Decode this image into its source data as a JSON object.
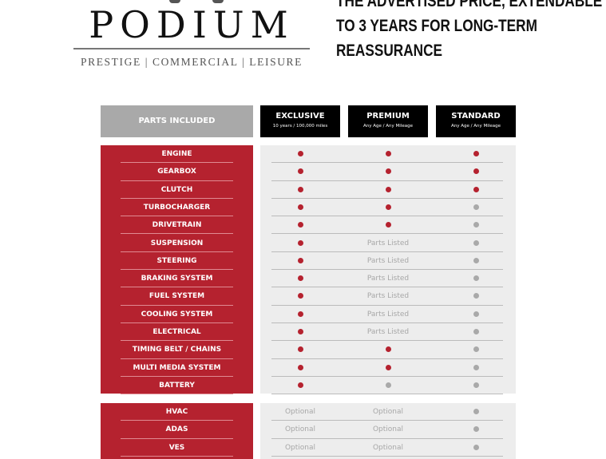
{
  "brand": {
    "name": "PODIUM",
    "tagline": "PRESTIGE | COMMERCIAL | LEISURE"
  },
  "headline": {
    "lines": [
      "THE ADVERTISED PRICE, EXTENDABLE UP",
      "TO 3 YEARS FOR LONG-TERM",
      "REASSURANCE"
    ]
  },
  "table": {
    "parts_header": "PARTS INCLUDED",
    "plans": [
      {
        "title": "EXCLUSIVE",
        "subtitle": "10 years / 100,000 miles"
      },
      {
        "title": "PREMIUM",
        "subtitle": "Any Age / Any Mileage"
      },
      {
        "title": "STANDARD",
        "subtitle": "Any Age / Any Mileage"
      }
    ],
    "colors": {
      "included": "#b5222f",
      "not_included": "#a9a9a9"
    },
    "rows": [
      {
        "part": "ENGINE",
        "cells": [
          "red",
          "red",
          "red"
        ]
      },
      {
        "part": "GEARBOX",
        "cells": [
          "red",
          "red",
          "red"
        ]
      },
      {
        "part": "CLUTCH",
        "cells": [
          "red",
          "red",
          "red"
        ]
      },
      {
        "part": "TURBOCHARGER",
        "cells": [
          "red",
          "red",
          "grey"
        ]
      },
      {
        "part": "DRIVETRAIN",
        "cells": [
          "red",
          "red",
          "grey"
        ]
      },
      {
        "part": "SUSPENSION",
        "cells": [
          "red",
          "Parts Listed",
          "grey"
        ]
      },
      {
        "part": "STEERING",
        "cells": [
          "red",
          "Parts Listed",
          "grey"
        ]
      },
      {
        "part": "BRAKING SYSTEM",
        "cells": [
          "red",
          "Parts Listed",
          "grey"
        ]
      },
      {
        "part": "FUEL SYSTEM",
        "cells": [
          "red",
          "Parts Listed",
          "grey"
        ]
      },
      {
        "part": "COOLING SYSTEM",
        "cells": [
          "red",
          "Parts Listed",
          "grey"
        ]
      },
      {
        "part": "ELECTRICAL",
        "cells": [
          "red",
          "Parts Listed",
          "grey"
        ]
      },
      {
        "part": "TIMING BELT / CHAINS",
        "cells": [
          "red",
          "red",
          "grey"
        ]
      },
      {
        "part": "MULTI MEDIA SYSTEM",
        "cells": [
          "red",
          "red",
          "grey"
        ]
      },
      {
        "part": "BATTERY",
        "cells": [
          "red",
          "grey",
          "grey"
        ]
      }
    ],
    "extras": [
      {
        "part": "HVAC",
        "cells": [
          "Optional",
          "Optional",
          "grey"
        ]
      },
      {
        "part": "ADAS",
        "cells": [
          "Optional",
          "Optional",
          "grey"
        ]
      },
      {
        "part": "VES",
        "cells": [
          "Optional",
          "Optional",
          "grey"
        ]
      }
    ]
  }
}
